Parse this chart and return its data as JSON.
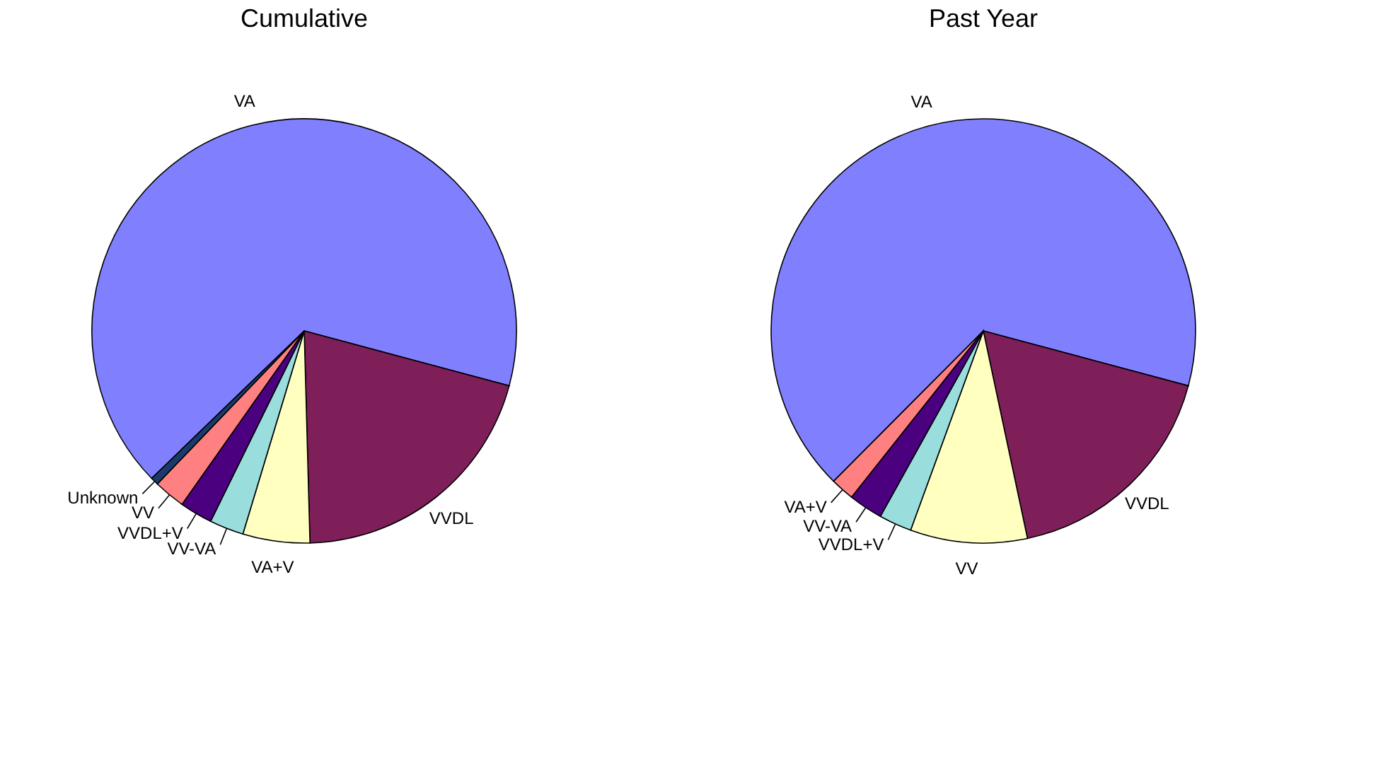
{
  "chart_data": [
    {
      "type": "pie",
      "title": "Cumulative",
      "categories": [
        "VA",
        "VVDL",
        "VA+V",
        "VV-VA",
        "VVDL+V",
        "VV",
        "Unknown"
      ],
      "values": [
        66.4,
        20.4,
        5.1,
        2.6,
        2.5,
        2.4,
        0.6
      ],
      "colors": [
        "#8080ff",
        "#7f1f5a",
        "#ffffc0",
        "#99dddd",
        "#4b0080",
        "#ff8080",
        "#1a3a6a"
      ]
    },
    {
      "type": "pie",
      "title": "Past Year",
      "categories": [
        "VA",
        "VVDL",
        "VV",
        "VVDL+V",
        "VV-VA",
        "VA+V"
      ],
      "values": [
        66.7,
        17.5,
        8.9,
        2.5,
        2.6,
        1.8
      ],
      "colors": [
        "#8080ff",
        "#7f1f5a",
        "#ffffc0",
        "#99dddd",
        "#4b0080",
        "#ff8080"
      ]
    }
  ]
}
